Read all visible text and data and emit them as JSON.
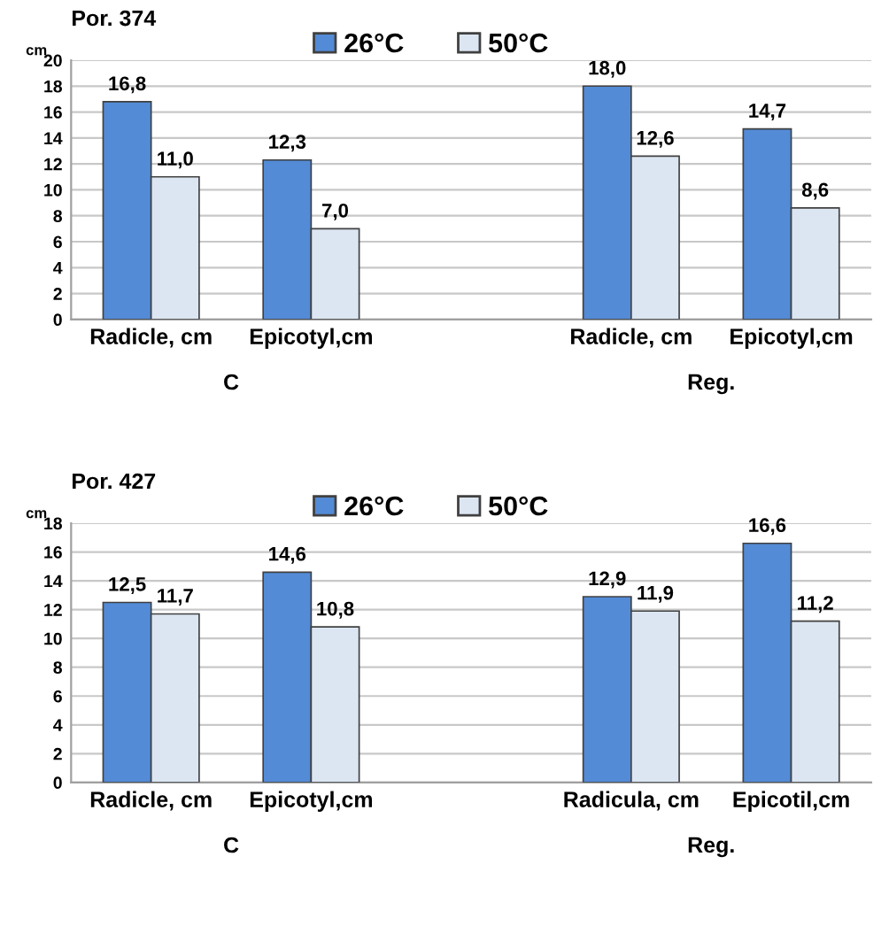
{
  "chart_data": [
    {
      "type": "bar",
      "title": "Por. 374",
      "ylabel": "cm",
      "categories": [
        "Radicle, cm",
        "Epicotyl,cm",
        null,
        "Radicle, cm",
        "Epicotyl,cm"
      ],
      "series": [
        {
          "name": "26°C",
          "color": "#538bd6",
          "values": [
            16.8,
            12.3,
            null,
            18.0,
            14.7
          ],
          "value_labels": [
            "16,8",
            "12,3",
            null,
            "18,0",
            "14,7"
          ]
        },
        {
          "name": "50°C",
          "color": "#dce6f2",
          "values": [
            11.0,
            7.0,
            null,
            12.6,
            8.6
          ],
          "value_labels": [
            "11,0",
            "7,0",
            null,
            "12,6",
            "8,6"
          ]
        }
      ],
      "ylim": [
        0,
        20
      ],
      "yticks": [
        0,
        2,
        4,
        6,
        8,
        10,
        12,
        14,
        16,
        18,
        20
      ],
      "grid": "y",
      "legend": "top",
      "annotations": [
        "C",
        "Reg."
      ]
    },
    {
      "type": "bar",
      "title": "Por. 427",
      "ylabel": "cm",
      "categories": [
        "Radicle, cm",
        "Epicotyl,cm",
        null,
        "Radicula, cm",
        "Epicotil,cm"
      ],
      "series": [
        {
          "name": "26°C",
          "color": "#538bd6",
          "values": [
            12.5,
            14.6,
            null,
            12.9,
            16.6
          ],
          "value_labels": [
            "12,5",
            "14,6",
            null,
            "12,9",
            "16,6"
          ]
        },
        {
          "name": "50°C",
          "color": "#dce6f2",
          "values": [
            11.7,
            10.8,
            null,
            11.9,
            11.2
          ],
          "value_labels": [
            "11,7",
            "10,8",
            null,
            "11,9",
            "11,2"
          ]
        }
      ],
      "ylim": [
        0,
        18
      ],
      "yticks": [
        0,
        2,
        4,
        6,
        8,
        10,
        12,
        14,
        16,
        18
      ],
      "grid": "y",
      "legend": "top",
      "annotations": [
        "C",
        "Reg."
      ]
    }
  ]
}
